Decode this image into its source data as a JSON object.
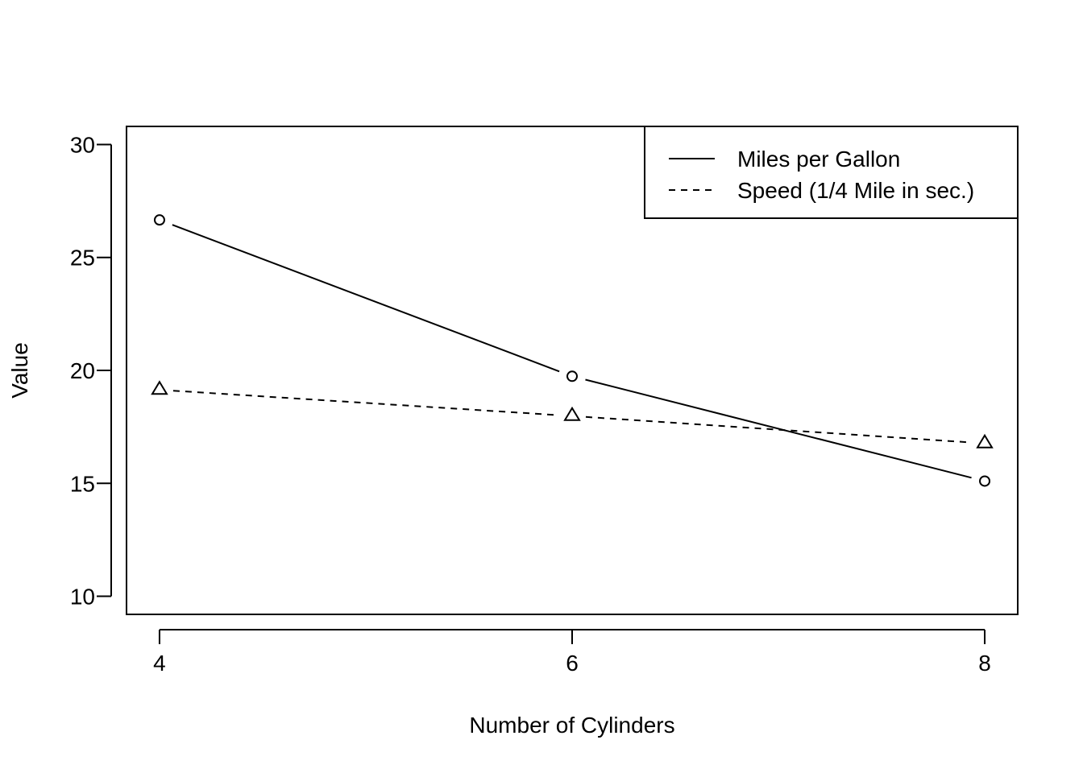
{
  "chart_data": {
    "type": "line",
    "title": "",
    "xlabel": "Number of Cylinders",
    "ylabel": "Value",
    "x": [
      4,
      6,
      8
    ],
    "xticks": [
      "4",
      "6",
      "8"
    ],
    "yticks": [
      "10",
      "15",
      "20",
      "25",
      "30"
    ],
    "xlim": [
      3.84,
      8.16
    ],
    "ylim": [
      9.2,
      30.8
    ],
    "grid": false,
    "legend_position": "top-right",
    "series": [
      {
        "name": "Miles per Gallon",
        "values": [
          26.66,
          19.74,
          15.1
        ],
        "line_style": "solid",
        "marker": "circle"
      },
      {
        "name": "Speed (1/4 Mile in sec.)",
        "values": [
          19.14,
          17.98,
          16.77
        ],
        "line_style": "dashed",
        "marker": "triangle"
      }
    ],
    "colors": {
      "line": "#000000",
      "background": "#ffffff"
    }
  }
}
